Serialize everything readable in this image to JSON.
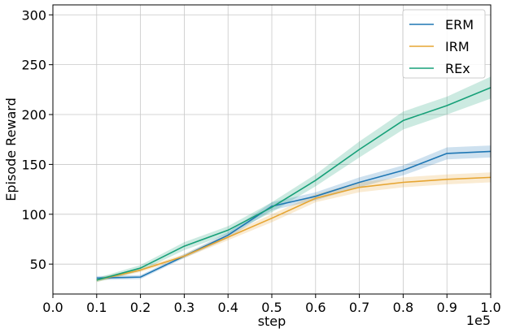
{
  "chart_data": {
    "type": "line",
    "title": "",
    "xlabel": "step",
    "ylabel": "Episode Reward",
    "x_offset_text": "1e5",
    "xlim": [
      0.0,
      1.0
    ],
    "ylim": [
      20,
      310
    ],
    "xticks": [
      "0.0",
      "0.1",
      "0.2",
      "0.3",
      "0.4",
      "0.5",
      "0.6",
      "0.7",
      "0.8",
      "0.9",
      "1.0"
    ],
    "yticks": [
      "50",
      "100",
      "150",
      "200",
      "250",
      "300"
    ],
    "grid": true,
    "legend_position": "top-right",
    "x": [
      0.1,
      0.2,
      0.3,
      0.4,
      0.5,
      0.6,
      0.7,
      0.8,
      0.9,
      1.0
    ],
    "series": [
      {
        "name": "ERM",
        "color": "#1f77b4",
        "values": [
          36,
          37,
          58,
          79,
          108,
          118,
          132,
          144,
          161,
          163
        ],
        "lower": [
          34,
          35,
          56,
          76,
          104,
          114,
          127,
          139,
          155,
          157
        ],
        "upper": [
          38,
          39,
          60,
          82,
          112,
          122,
          137,
          149,
          167,
          169
        ]
      },
      {
        "name": "IRM",
        "color": "#e6a532",
        "values": [
          34,
          44,
          58,
          77,
          96,
          116,
          127,
          132,
          135,
          137
        ],
        "lower": [
          32,
          42,
          56,
          74,
          92,
          112,
          122,
          127,
          130,
          132
        ],
        "upper": [
          36,
          46,
          60,
          80,
          100,
          120,
          132,
          137,
          140,
          142
        ]
      },
      {
        "name": "REx",
        "color": "#16a078",
        "values": [
          34,
          46,
          68,
          84,
          107,
          134,
          165,
          194,
          209,
          227
        ],
        "lower": [
          32,
          43,
          64,
          80,
          102,
          128,
          157,
          185,
          200,
          216
        ],
        "upper": [
          36,
          49,
          72,
          88,
          112,
          140,
          173,
          203,
          218,
          238
        ]
      }
    ]
  }
}
